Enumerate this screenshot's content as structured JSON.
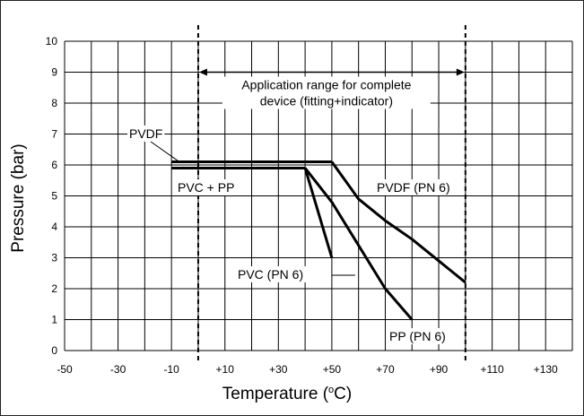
{
  "chart_data": {
    "type": "line",
    "xlabel_main": "Temperature (",
    "xlabel_sup": "o",
    "xlabel_end": "C)",
    "ylabel": "Pressure (bar)",
    "xlim": [
      -50,
      140
    ],
    "ylim": [
      0,
      10
    ],
    "x_ticks": [
      "-50",
      "-30",
      "-10",
      "+10",
      "+30",
      "+50",
      "+70",
      "+90",
      "+110",
      "+130"
    ],
    "y_ticks": [
      "0",
      "1",
      "2",
      "3",
      "4",
      "5",
      "6",
      "7",
      "8",
      "9",
      "10"
    ],
    "grid": true,
    "series": [
      {
        "name": "PVDF",
        "x": [
          -10,
          50
        ],
        "y": [
          6.1,
          6.1
        ]
      },
      {
        "name": "PVC + PP",
        "x": [
          -10,
          40
        ],
        "y": [
          5.9,
          5.9
        ]
      },
      {
        "name": "PVDF (PN 6)",
        "x": [
          50,
          60,
          70,
          80,
          90,
          100
        ],
        "y": [
          6.1,
          4.9,
          4.2,
          3.6,
          2.9,
          2.2
        ]
      },
      {
        "name": "PVC (PN 6)",
        "x": [
          40,
          50
        ],
        "y": [
          5.9,
          3.0
        ]
      },
      {
        "name": "PP (PN 6)",
        "x": [
          40,
          50,
          60,
          70,
          80
        ],
        "y": [
          5.9,
          4.8,
          3.4,
          2.0,
          1.0
        ]
      }
    ],
    "application_range": {
      "x": [
        0,
        100
      ],
      "y_arrow": 9,
      "label_line1": "Application range for complete",
      "label_line2": "device (fitting+indicator)"
    },
    "annotations": {
      "pvdf": "PVDF",
      "pvc_pp": "PVC + PP",
      "pvdf_pn6": "PVDF (PN 6)",
      "pvc_pn6": "PVC (PN 6)",
      "pp_pn6": "PP (PN 6)"
    }
  }
}
